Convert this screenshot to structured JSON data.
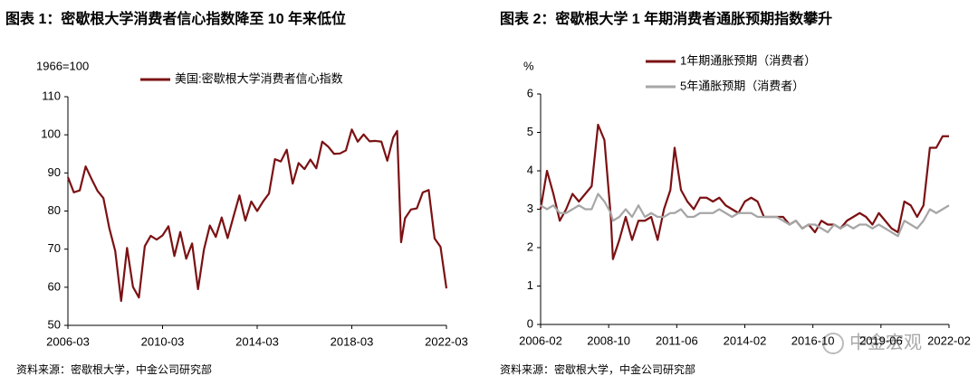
{
  "chart_data": [
    {
      "type": "line",
      "title": "图表 1：密歇根大学消费者信心指数降至 10 年来低位",
      "y_unit_label": "1966=100",
      "source": "资料来源：密歇根大学，中金公司研究部",
      "x": [
        "2006-03",
        "2006-06",
        "2006-09",
        "2006-12",
        "2007-03",
        "2007-06",
        "2007-09",
        "2007-12",
        "2008-03",
        "2008-06",
        "2008-09",
        "2008-12",
        "2009-03",
        "2009-06",
        "2009-09",
        "2009-12",
        "2010-03",
        "2010-06",
        "2010-09",
        "2010-12",
        "2011-03",
        "2011-06",
        "2011-09",
        "2011-12",
        "2012-03",
        "2012-06",
        "2012-09",
        "2012-12",
        "2013-03",
        "2013-06",
        "2013-09",
        "2013-12",
        "2014-03",
        "2014-06",
        "2014-09",
        "2014-12",
        "2015-03",
        "2015-06",
        "2015-09",
        "2015-12",
        "2016-03",
        "2016-06",
        "2016-09",
        "2016-12",
        "2017-03",
        "2017-06",
        "2017-09",
        "2017-12",
        "2018-03",
        "2018-06",
        "2018-09",
        "2018-12",
        "2019-03",
        "2019-06",
        "2019-09",
        "2019-12",
        "2020-02",
        "2020-04",
        "2020-06",
        "2020-09",
        "2020-12",
        "2021-03",
        "2021-06",
        "2021-09",
        "2021-12",
        "2022-03"
      ],
      "series": [
        {
          "name": "美国:密歇根大学消费者信心指数",
          "color": "#7b1113",
          "values": [
            88.9,
            84.9,
            85.4,
            91.7,
            88.4,
            85.3,
            83.4,
            75.5,
            69.5,
            56.4,
            70.3,
            60.1,
            57.3,
            70.8,
            73.5,
            72.5,
            73.6,
            76.0,
            68.2,
            74.5,
            67.5,
            71.5,
            59.5,
            69.9,
            76.2,
            73.2,
            78.3,
            72.9,
            78.6,
            84.1,
            77.5,
            82.5,
            80.0,
            82.5,
            84.6,
            93.6,
            93.0,
            96.1,
            87.2,
            92.6,
            91.0,
            93.5,
            91.2,
            98.2,
            96.9,
            95.0,
            95.1,
            95.9,
            101.4,
            98.2,
            100.1,
            98.3,
            98.4,
            98.2,
            93.2,
            99.3,
            101.0,
            71.8,
            78.1,
            80.4,
            80.7,
            84.9,
            85.5,
            72.8,
            70.6,
            59.7
          ]
        }
      ],
      "xlim": [
        "2006-03",
        "2022-03"
      ],
      "ylim": [
        50,
        110
      ],
      "xticks": [
        "2006-03",
        "2010-03",
        "2014-03",
        "2018-03",
        "2022-03"
      ],
      "yticks": [
        50,
        60,
        70,
        80,
        90,
        100,
        110
      ]
    },
    {
      "type": "line",
      "title": "图表 2：密歇根大学 1 年期消费者通胀预期指数攀升",
      "y_unit_label": "%",
      "source": "资料来源：密歇根大学，中金公司研究部",
      "x": [
        "2006-02",
        "2006-05",
        "2006-08",
        "2006-11",
        "2007-02",
        "2007-05",
        "2007-08",
        "2007-11",
        "2008-02",
        "2008-05",
        "2008-08",
        "2008-11",
        "2008-12",
        "2009-03",
        "2009-06",
        "2009-09",
        "2009-12",
        "2010-03",
        "2010-06",
        "2010-09",
        "2010-12",
        "2011-03",
        "2011-05",
        "2011-08",
        "2011-11",
        "2012-02",
        "2012-05",
        "2012-08",
        "2012-11",
        "2013-02",
        "2013-05",
        "2013-08",
        "2013-11",
        "2014-02",
        "2014-05",
        "2014-08",
        "2014-11",
        "2015-02",
        "2015-05",
        "2015-08",
        "2015-11",
        "2016-02",
        "2016-05",
        "2016-08",
        "2016-11",
        "2017-02",
        "2017-05",
        "2017-08",
        "2017-11",
        "2018-02",
        "2018-05",
        "2018-08",
        "2018-11",
        "2019-02",
        "2019-05",
        "2019-08",
        "2019-11",
        "2020-02",
        "2020-05",
        "2020-08",
        "2020-11",
        "2021-02",
        "2021-05",
        "2021-08",
        "2021-11",
        "2022-02"
      ],
      "series": [
        {
          "name": "1年期通胀预期（消费者）",
          "color": "#7b1113",
          "values": [
            3.0,
            4.0,
            3.4,
            2.7,
            3.0,
            3.4,
            3.2,
            3.4,
            3.6,
            5.2,
            4.8,
            2.8,
            1.7,
            2.2,
            2.8,
            2.2,
            2.7,
            2.7,
            2.8,
            2.2,
            3.0,
            3.5,
            4.6,
            3.5,
            3.2,
            3.0,
            3.3,
            3.3,
            3.2,
            3.3,
            3.1,
            3.0,
            2.9,
            3.2,
            3.3,
            3.2,
            2.8,
            2.8,
            2.8,
            2.8,
            2.6,
            2.7,
            2.5,
            2.6,
            2.4,
            2.7,
            2.6,
            2.6,
            2.5,
            2.7,
            2.8,
            2.9,
            2.8,
            2.6,
            2.9,
            2.7,
            2.5,
            2.4,
            3.2,
            3.1,
            2.8,
            3.1,
            4.6,
            4.6,
            4.9,
            4.9
          ]
        },
        {
          "name": "5年通胀预期（消费者）",
          "color": "#a6a6a6",
          "values": [
            3.1,
            3.0,
            3.1,
            2.9,
            2.9,
            3.0,
            3.1,
            3.0,
            3.0,
            3.4,
            3.2,
            2.9,
            2.7,
            2.8,
            3.0,
            2.8,
            3.1,
            2.8,
            2.9,
            2.8,
            2.8,
            2.9,
            2.9,
            3.0,
            2.8,
            2.8,
            2.9,
            2.9,
            2.9,
            3.0,
            2.9,
            2.8,
            2.9,
            2.9,
            2.9,
            2.8,
            2.8,
            2.8,
            2.8,
            2.7,
            2.6,
            2.7,
            2.5,
            2.6,
            2.6,
            2.5,
            2.4,
            2.6,
            2.5,
            2.6,
            2.5,
            2.6,
            2.6,
            2.5,
            2.6,
            2.5,
            2.4,
            2.3,
            2.7,
            2.6,
            2.5,
            2.7,
            3.0,
            2.9,
            3.0,
            3.1
          ]
        }
      ],
      "xlim": [
        "2006-02",
        "2022-02"
      ],
      "ylim": [
        0,
        6
      ],
      "xticks": [
        "2006-02",
        "2008-10",
        "2011-06",
        "2014-02",
        "2016-10",
        "2019-06",
        "2022-02"
      ],
      "yticks": [
        0,
        1,
        2,
        3,
        4,
        5,
        6
      ]
    }
  ],
  "watermark": "中金宏观"
}
